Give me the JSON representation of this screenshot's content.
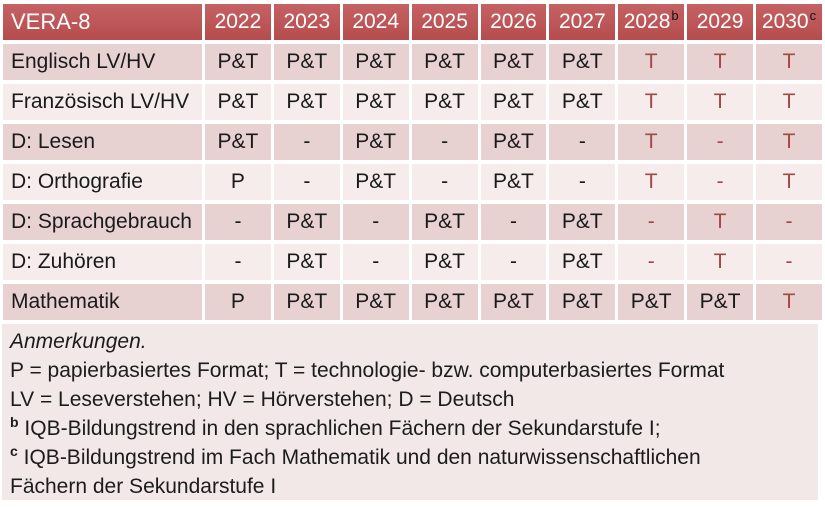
{
  "colors": {
    "header_bg": "#bf5052",
    "header_text": "#ffffff",
    "band_dark": "#e8d1d1",
    "band_light": "#f5eceb",
    "notes_bg": "#f2e8e7",
    "cell_text": "#1a1a1a",
    "accent_red_text": "#9e4a47"
  },
  "table": {
    "title": "VERA-8",
    "year_columns": [
      {
        "label": "2022",
        "sup": ""
      },
      {
        "label": "2023",
        "sup": ""
      },
      {
        "label": "2024",
        "sup": ""
      },
      {
        "label": "2025",
        "sup": ""
      },
      {
        "label": "2026",
        "sup": ""
      },
      {
        "label": "2027",
        "sup": ""
      },
      {
        "label": "2028",
        "sup": "b"
      },
      {
        "label": "2029",
        "sup": ""
      },
      {
        "label": "2030",
        "sup": "c"
      }
    ],
    "rows": [
      {
        "label": "Englisch LV/HV",
        "cells": [
          {
            "text": "P&T",
            "red": false
          },
          {
            "text": "P&T",
            "red": false
          },
          {
            "text": "P&T",
            "red": false
          },
          {
            "text": "P&T",
            "red": false
          },
          {
            "text": "P&T",
            "red": false
          },
          {
            "text": "P&T",
            "red": false
          },
          {
            "text": "T",
            "red": true
          },
          {
            "text": "T",
            "red": true
          },
          {
            "text": "T",
            "red": true
          }
        ]
      },
      {
        "label": "Französisch LV/HV",
        "cells": [
          {
            "text": "P&T",
            "red": false
          },
          {
            "text": "P&T",
            "red": false
          },
          {
            "text": "P&T",
            "red": false
          },
          {
            "text": "P&T",
            "red": false
          },
          {
            "text": "P&T",
            "red": false
          },
          {
            "text": "P&T",
            "red": false
          },
          {
            "text": "T",
            "red": true
          },
          {
            "text": "T",
            "red": true
          },
          {
            "text": "T",
            "red": true
          }
        ]
      },
      {
        "label": "D: Lesen",
        "cells": [
          {
            "text": "P&T",
            "red": false
          },
          {
            "text": "-",
            "red": false
          },
          {
            "text": "P&T",
            "red": false
          },
          {
            "text": "-",
            "red": false
          },
          {
            "text": "P&T",
            "red": false
          },
          {
            "text": "-",
            "red": false
          },
          {
            "text": "T",
            "red": true
          },
          {
            "text": "-",
            "red": true
          },
          {
            "text": "T",
            "red": true
          }
        ]
      },
      {
        "label": "D: Orthografie",
        "cells": [
          {
            "text": "P",
            "red": false
          },
          {
            "text": "-",
            "red": false
          },
          {
            "text": "P&T",
            "red": false
          },
          {
            "text": "-",
            "red": false
          },
          {
            "text": "P&T",
            "red": false
          },
          {
            "text": "-",
            "red": false
          },
          {
            "text": "T",
            "red": true
          },
          {
            "text": "-",
            "red": true
          },
          {
            "text": "T",
            "red": true
          }
        ]
      },
      {
        "label": "D: Sprachgebrauch",
        "cells": [
          {
            "text": "-",
            "red": false
          },
          {
            "text": "P&T",
            "red": false
          },
          {
            "text": "-",
            "red": false
          },
          {
            "text": "P&T",
            "red": false
          },
          {
            "text": "-",
            "red": false
          },
          {
            "text": "P&T",
            "red": false
          },
          {
            "text": "-",
            "red": true
          },
          {
            "text": "T",
            "red": true
          },
          {
            "text": "-",
            "red": true
          }
        ]
      },
      {
        "label": "D: Zuhören",
        "cells": [
          {
            "text": "-",
            "red": false
          },
          {
            "text": "P&T",
            "red": false
          },
          {
            "text": "-",
            "red": false
          },
          {
            "text": "P&T",
            "red": false
          },
          {
            "text": "-",
            "red": false
          },
          {
            "text": "P&T",
            "red": false
          },
          {
            "text": "-",
            "red": true
          },
          {
            "text": "T",
            "red": true
          },
          {
            "text": "-",
            "red": true
          }
        ]
      },
      {
        "label": "Mathematik",
        "cells": [
          {
            "text": "P",
            "red": false
          },
          {
            "text": "P&T",
            "red": false
          },
          {
            "text": "P&T",
            "red": false
          },
          {
            "text": "P&T",
            "red": false
          },
          {
            "text": "P&T",
            "red": false
          },
          {
            "text": "P&T",
            "red": false
          },
          {
            "text": "P&T",
            "red": false
          },
          {
            "text": "P&T",
            "red": false
          },
          {
            "text": "T",
            "red": true
          }
        ]
      }
    ]
  },
  "notes": {
    "heading": "Anmerkungen.",
    "lines": [
      {
        "sup": "",
        "text": "P = papierbasiertes Format; T = technologie- bzw. computerbasiertes Format"
      },
      {
        "sup": "",
        "text": "LV = Leseverstehen; HV = Hörverstehen; D = Deutsch"
      },
      {
        "sup": "b",
        "text": "IQB-Bildungstrend in den sprachlichen Fächern der Sekundarstufe I;"
      },
      {
        "sup": "c",
        "text": "IQB-Bildungstrend im Fach Mathematik und den naturwissenschaftlichen"
      },
      {
        "sup": "",
        "text": "Fächern der Sekundarstufe I"
      }
    ]
  }
}
